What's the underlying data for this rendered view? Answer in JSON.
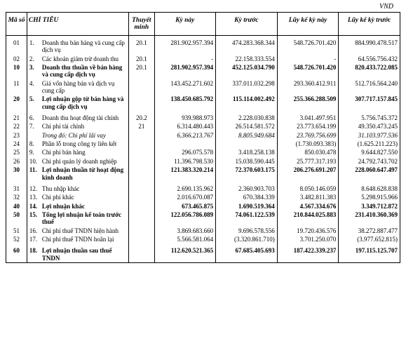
{
  "currency_label": "VND",
  "header": {
    "ma_so": "Mã số",
    "chi_tieu": "CHỈ TIÊU",
    "thuyet_minh": "Thuyết minh",
    "ky_nay": "Kỳ này",
    "ky_truoc": "Kỳ trước",
    "luy_ke_nay": "Lũy kế kỳ này",
    "luy_ke_truoc": "Lũy kế kỳ trước"
  },
  "rows": [
    {
      "ma": "01",
      "idx": "1.",
      "label": "Doanh thu bán hàng và cung cấp dịch vụ",
      "tm": "20.1",
      "c1": "281.902.957.394",
      "c2": "474.283.368.344",
      "c3": "548.726.701.420",
      "c4": "884.990.478.517",
      "bold": false,
      "gap": true
    },
    {
      "ma": "02",
      "idx": "2.",
      "label": "Các khoản giảm trừ doanh thu",
      "tm": "20.1",
      "c1": "-",
      "c2": "22.158.333.554",
      "c3": "-",
      "c4": "64.556.756.432",
      "bold": false,
      "gap": false
    },
    {
      "ma": "10",
      "idx": "3.",
      "label": "Doanh thu thuần về bán hàng và cung cấp dịch vụ",
      "tm": "20.1",
      "c1": "281.902.957.394",
      "c2": "452.125.034.790",
      "c3": "548.726.701.420",
      "c4": "820.433.722.085",
      "bold": true,
      "gap": false
    },
    {
      "ma": "11",
      "idx": "4.",
      "label": "Giá vốn hàng bán và dịch vụ cung cấp",
      "tm": "",
      "c1": "143.452.271.602",
      "c2": "337.011.032.298",
      "c3": "293.360.412.911",
      "c4": "512.716.564.240",
      "bold": false,
      "gap": false
    },
    {
      "ma": "20",
      "idx": "5.",
      "label": "Lợi nhuận gộp từ bán hàng và cung cấp dịch vụ",
      "tm": "",
      "c1": "138.450.685.792",
      "c2": "115.114.002.492",
      "c3": "255.366.288.509",
      "c4": "307.717.157.845",
      "bold": true,
      "gap": false
    },
    {
      "ma": "21",
      "idx": "6.",
      "label": "Doanh thu hoạt động tài chính",
      "tm": "20.2",
      "c1": "939.988.973",
      "c2": "2.228.030.838",
      "c3": "3.041.497.951",
      "c4": "5.756.745.372",
      "bold": false,
      "gap": true
    },
    {
      "ma": "22",
      "idx": "7.",
      "label": "Chi phí tài chính",
      "tm": "21",
      "c1": "6.314.480.443",
      "c2": "26.514.581.572",
      "c3": "23.773.654.199",
      "c4": "49.350.473.245",
      "bold": false,
      "gap": false
    },
    {
      "ma": "23",
      "idx": "",
      "label": "Trong đó: Chi phí lãi vay",
      "tm": "",
      "c1": "6.366.213.767",
      "c2": "8.805.949.684",
      "c3": "23.769.756.699",
      "c4": "31.103.977.536",
      "bold": false,
      "italic": true,
      "gap": false
    },
    {
      "ma": "24",
      "idx": "8.",
      "label": "Phần lỗ trong công ty liên kết",
      "tm": "",
      "c1": "",
      "c2": "",
      "c3": "(1.730.093.383)",
      "c4": "(1.625.211.223)",
      "bold": false,
      "gap": false
    },
    {
      "ma": "25",
      "idx": "9.",
      "label": "Chi phí bán hàng",
      "tm": "",
      "c1": "296.075.578",
      "c2": "3.418.258.138",
      "c3": "850.030.478",
      "c4": "9.644.827.550",
      "bold": false,
      "gap": false
    },
    {
      "ma": "26",
      "idx": "10.",
      "label": "Chi phí quản lý doanh nghiệp",
      "tm": "",
      "c1": "11.396.798.530",
      "c2": "15.038.590.445",
      "c3": "25.777.317.193",
      "c4": "24.792.743.702",
      "bold": false,
      "gap": false
    },
    {
      "ma": "30",
      "idx": "11.",
      "label": "Lợi nhuận thuần từ hoạt động kinh doanh",
      "tm": "",
      "c1": "121.383.320.214",
      "c2": "72.370.603.175",
      "c3": "206.276.691.207",
      "c4": "228.060.647.497",
      "bold": true,
      "gap": false
    },
    {
      "ma": "31",
      "idx": "12.",
      "label": "Thu nhập khác",
      "tm": "",
      "c1": "2.690.135.962",
      "c2": "2.360.903.703",
      "c3": "8.050.146.059",
      "c4": "8.648.628.838",
      "bold": false,
      "gap": true
    },
    {
      "ma": "32",
      "idx": "13.",
      "label": "Chi phí khác",
      "tm": "",
      "c1": "2.016.670.087",
      "c2": "670.384.339",
      "c3": "3.482.811.383",
      "c4": "5.298.915.966",
      "bold": false,
      "gap": false
    },
    {
      "ma": "40",
      "idx": "14.",
      "label": "Lợi nhuận khác",
      "tm": "",
      "c1": "673.465.875",
      "c2": "1.690.519.364",
      "c3": "4.567.334.676",
      "c4": "3.349.712.872",
      "bold": true,
      "gap": false
    },
    {
      "ma": "50",
      "idx": "15.",
      "label": "Tổng lợi nhuận kế toán trước thuế",
      "tm": "",
      "c1": "122.056.786.089",
      "c2": "74.061.122.539",
      "c3": "210.844.025.883",
      "c4": "231.410.360.369",
      "bold": true,
      "gap": false
    },
    {
      "ma": "51",
      "idx": "16.",
      "label": "Chi phí thuế TNDN hiện hành",
      "tm": "",
      "c1": "3.869.683.660",
      "c2": "9.696.578.556",
      "c3": "19.720.436.576",
      "c4": "38.272.887.477",
      "bold": false,
      "gap": false
    },
    {
      "ma": "52",
      "idx": "17.",
      "label": "Chi phí thuế TNDN hoãn lại",
      "tm": "",
      "c1": "5.566.581.064",
      "c2": "(3.320.861.710)",
      "c3": "3.701.250.070",
      "c4": "(3.977.652.815)",
      "bold": false,
      "gap": false
    },
    {
      "ma": "60",
      "idx": "18.",
      "label": "Lợi nhuận thuần sau thuế TNDN",
      "tm": "",
      "c1": "112.620.521.365",
      "c2": "67.685.405.693",
      "c3": "187.422.339.237",
      "c4": "197.115.125.707",
      "bold": true,
      "gap": true
    }
  ]
}
